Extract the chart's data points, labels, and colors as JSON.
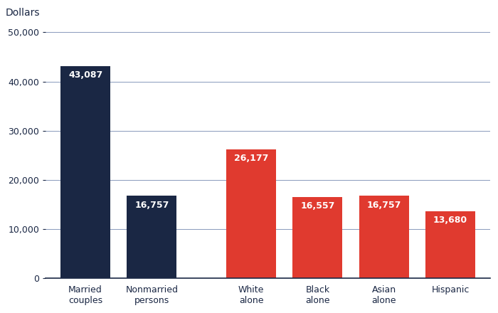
{
  "categories": [
    "Married\ncouples",
    "Nonmarried\npersons",
    "White\nalone",
    "Black\nalone",
    "Asian\nalone",
    "Hispanic"
  ],
  "values": [
    43087,
    16757,
    26177,
    16557,
    16757,
    13680
  ],
  "bar_colors": [
    "#1a2744",
    "#1a2744",
    "#e03a2f",
    "#e03a2f",
    "#e03a2f",
    "#e03a2f"
  ],
  "labels": [
    "43,087",
    "16,757",
    "26,177",
    "16,557",
    "16,757",
    "13,680"
  ],
  "ylabel": "Dollars",
  "ylim": [
    0,
    50000
  ],
  "yticks": [
    0,
    10000,
    20000,
    30000,
    40000,
    50000
  ],
  "bar_width": 0.75,
  "label_color": "#ffffff",
  "label_fontsize": 9,
  "ylabel_fontsize": 10,
  "tick_fontsize": 9,
  "xlabel_fontsize": 9,
  "grid_color": "#8899bb",
  "axis_color": "#1a2744",
  "background_color": "#ffffff",
  "x_positions": [
    0,
    1,
    2.5,
    3.5,
    4.5,
    5.5
  ]
}
